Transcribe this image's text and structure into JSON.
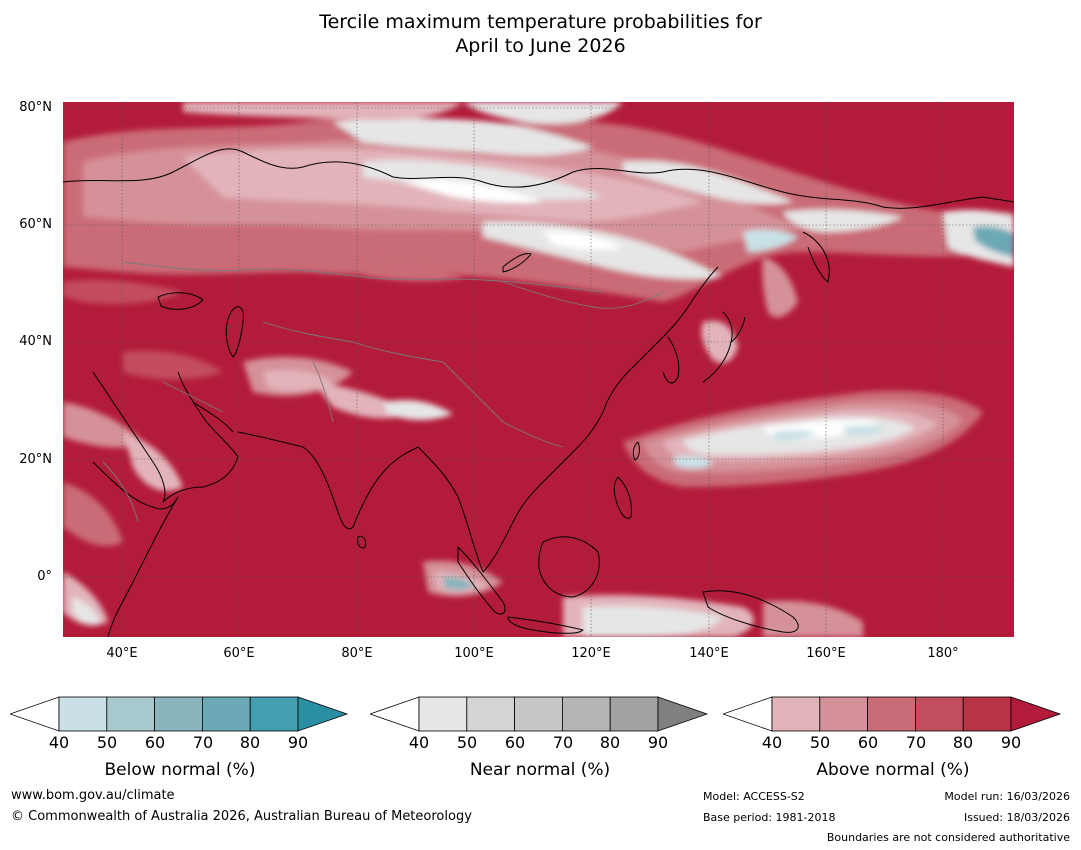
{
  "title": {
    "line1": "Tercile maximum temperature probabilities for",
    "line2": "April to June 2026"
  },
  "map": {
    "lat_labels": [
      "80°N",
      "60°N",
      "40°N",
      "20°N",
      "0°"
    ],
    "lon_labels": [
      "40°E",
      "60°E",
      "80°E",
      "100°E",
      "120°E",
      "140°E",
      "160°E",
      "180°"
    ],
    "lat_values": [
      80,
      60,
      40,
      20,
      0
    ],
    "lon_values": [
      40,
      60,
      80,
      100,
      120,
      140,
      160,
      180
    ],
    "extent": {
      "lon_min": 30,
      "lon_max": 192,
      "lat_min": -10,
      "lat_max": 81
    }
  },
  "colorbars": [
    {
      "title": "Below normal (%)",
      "ticks": [
        "40",
        "50",
        "60",
        "70",
        "80",
        "90"
      ],
      "colors": [
        "#c9e1e6",
        "#a7c9ce",
        "#89b5bf",
        "#6aa9b5",
        "#449fb0",
        "#2b8fa3"
      ]
    },
    {
      "title": "Near normal (%)",
      "ticks": [
        "40",
        "50",
        "60",
        "70",
        "80",
        "90"
      ],
      "colors": [
        "#e6e6e6",
        "#d5d5d5",
        "#c7c7c7",
        "#b5b5b5",
        "#a2a2a2",
        "#808080"
      ]
    },
    {
      "title": "Above normal (%)",
      "ticks": [
        "40",
        "50",
        "60",
        "70",
        "80",
        "90"
      ],
      "colors": [
        "#e2b4ba",
        "#d59199",
        "#ca6c77",
        "#c34e5e",
        "#b93447",
        "#b31b3a"
      ]
    }
  ],
  "footer": {
    "website": "www.bom.gov.au/climate",
    "copyright": "© Commonwealth of Australia 2026, Australian Bureau of Meteorology",
    "model": "Model: ACCESS-S2",
    "base_period": "Base period: 1981-2018",
    "model_run": "Model run: 16/03/2026",
    "issued": "Issued: 18/03/2026",
    "disclaimer": "Boundaries are not considered authoritative"
  }
}
